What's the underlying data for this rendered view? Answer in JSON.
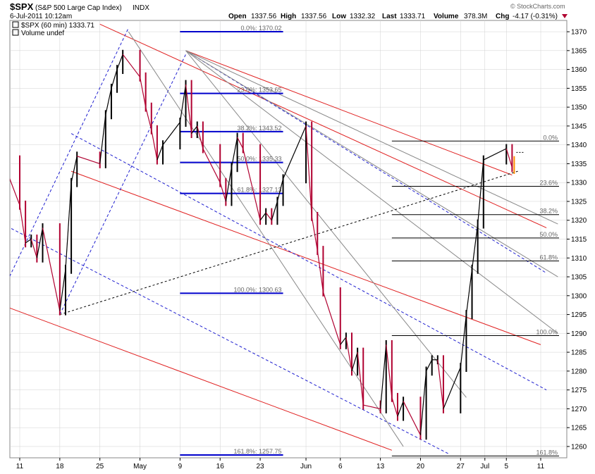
{
  "header": {
    "symbol": "$SPX",
    "name": "(S&P 500 Large Cap Index)",
    "exchange": "INDX",
    "date": "6-Jul-2011 10:12am",
    "open_label": "Open",
    "open": "1337.56",
    "high_label": "High",
    "high": "1337.56",
    "low_label": "Low",
    "low": "1332.32",
    "last_label": "Last",
    "last": "1333.71",
    "volume_label": "Volume",
    "volume": "378.3M",
    "chg_label": "Chg",
    "chg": "-4.17 (-0.31%)",
    "brand": "© StockCharts.com"
  },
  "legend": {
    "series": "$SPX (60 min) 1333.71",
    "volume": "Volume undef"
  },
  "colors": {
    "up": "#000000",
    "down": "#b00030",
    "last": "#ff8c00",
    "red_channel": "#e02020",
    "blue_channel": "#2020d0",
    "fan": "#888888",
    "fib_left": "#0000cc",
    "fib_right": "#000000",
    "grid": "#d0d0d0"
  },
  "chart_data": {
    "type": "line",
    "title": "$SPX (S&P 500 Large Cap Index) INDX",
    "xlabel": "",
    "ylabel": "",
    "ylim": [
      1257,
      1373
    ],
    "x_ticks": [
      "11",
      "18",
      "25",
      "May",
      "9",
      "16",
      "23",
      "Jun",
      "6",
      "13",
      "20",
      "27",
      "Jul",
      "5",
      "11"
    ],
    "y_ticks": [
      1260,
      1265,
      1270,
      1275,
      1280,
      1285,
      1290,
      1295,
      1300,
      1305,
      1310,
      1315,
      1320,
      1325,
      1330,
      1335,
      1340,
      1345,
      1350,
      1355,
      1360,
      1365,
      1370
    ],
    "grid": true,
    "series": [
      {
        "name": "$SPX (60 min)",
        "x": [
          "2011-04-08",
          "2011-04-11",
          "2011-04-12",
          "2011-04-13",
          "2011-04-14",
          "2011-04-15",
          "2011-04-18",
          "2011-04-19",
          "2011-04-20",
          "2011-04-21",
          "2011-04-25",
          "2011-04-26",
          "2011-04-27",
          "2011-04-28",
          "2011-04-29",
          "2011-05-02",
          "2011-05-03",
          "2011-05-04",
          "2011-05-05",
          "2011-05-06",
          "2011-05-09",
          "2011-05-10",
          "2011-05-11",
          "2011-05-12",
          "2011-05-13",
          "2011-05-16",
          "2011-05-17",
          "2011-05-18",
          "2011-05-19",
          "2011-05-20",
          "2011-05-23",
          "2011-05-24",
          "2011-05-25",
          "2011-05-26",
          "2011-05-27",
          "2011-05-31",
          "2011-06-01",
          "2011-06-02",
          "2011-06-03",
          "2011-06-06",
          "2011-06-07",
          "2011-06-08",
          "2011-06-09",
          "2011-06-10",
          "2011-06-13",
          "2011-06-14",
          "2011-06-15",
          "2011-06-16",
          "2011-06-17",
          "2011-06-20",
          "2011-06-21",
          "2011-06-22",
          "2011-06-23",
          "2011-06-24",
          "2011-06-27",
          "2011-06-28",
          "2011-06-29",
          "2011-06-30",
          "2011-07-01",
          "2011-07-05",
          "2011-07-06"
        ],
        "values": [
          1336,
          1324,
          1314,
          1315,
          1310,
          1318,
          1296,
          1307,
          1330,
          1337,
          1335,
          1348,
          1355,
          1360,
          1364,
          1358,
          1350,
          1344,
          1336,
          1340,
          1346,
          1356,
          1343,
          1345,
          1339,
          1330,
          1325,
          1334,
          1342,
          1339,
          1320,
          1322,
          1320,
          1325,
          1331,
          1345,
          1321,
          1312,
          1301,
          1287,
          1289,
          1280,
          1285,
          1271,
          1270,
          1287,
          1273,
          1268,
          1272,
          1263,
          1280,
          1283,
          1283,
          1270,
          1281,
          1295,
          1307,
          1319,
          1336,
          1339,
          1334
        ]
      }
    ],
    "fib_levels_left": [
      {
        "label": "0.0%",
        "value": 1370.02
      },
      {
        "label": "23.6%",
        "value": 1353.65
      },
      {
        "label": "38.2%",
        "value": 1343.52
      },
      {
        "label": "50.0%",
        "value": 1335.33
      },
      {
        "label": "61.8%",
        "value": 1327.13
      },
      {
        "label": "100.0%",
        "value": 1300.63
      },
      {
        "label": "161.8%",
        "value": 1257.75
      }
    ],
    "fib_levels_right": [
      {
        "label": "0.0%",
        "value": 1341.0
      },
      {
        "label": "23.6%",
        "value": 1329.0
      },
      {
        "label": "38.2%",
        "value": 1321.5
      },
      {
        "label": "50.0%",
        "value": 1315.3
      },
      {
        "label": "61.8%",
        "value": 1309.2
      },
      {
        "label": "100.0%",
        "value": 1289.4
      },
      {
        "label": "161.8%",
        "value": 1257.5
      }
    ],
    "trendlines": [
      {
        "style": "red",
        "from": [
          "2011-04-20",
          1333
        ],
        "to": [
          "2011-07-11",
          1287
        ]
      },
      {
        "style": "red",
        "from": [
          "2011-04-07",
          1298
        ],
        "to": [
          "2011-06-15",
          1259
        ]
      },
      {
        "style": "red",
        "from": [
          "2011-04-25",
          1372
        ],
        "to": [
          "2011-07-12",
          1318
        ]
      },
      {
        "style": "red",
        "from": [
          "2011-05-10",
          1365
        ],
        "to": [
          "2011-07-06",
          1332
        ]
      },
      {
        "style": "blue",
        "from": [
          "2011-04-20",
          1343
        ],
        "to": [
          "2011-07-12",
          1275
        ]
      },
      {
        "style": "blue",
        "from": [
          "2011-04-08",
          1319
        ],
        "to": [
          "2011-06-25",
          1258
        ]
      },
      {
        "style": "blue",
        "from": [
          "2011-05-10",
          1365
        ],
        "to": [
          "2011-07-12",
          1306
        ]
      },
      {
        "style": "blue",
        "from": [
          "2011-04-07",
          1298
        ],
        "to": [
          "2011-04-30",
          1371
        ]
      },
      {
        "style": "blue",
        "from": [
          "2011-04-18",
          1295
        ],
        "to": [
          "2011-05-10",
          1364
        ]
      },
      {
        "style": "gray",
        "from": [
          "2011-05-10",
          1365
        ],
        "to": [
          "2011-07-14",
          1319
        ]
      },
      {
        "style": "gray",
        "from": [
          "2011-05-10",
          1365
        ],
        "to": [
          "2011-07-14",
          1305
        ]
      },
      {
        "style": "gray",
        "from": [
          "2011-05-10",
          1365
        ],
        "to": [
          "2011-07-14",
          1290
        ]
      },
      {
        "style": "gray",
        "from": [
          "2011-05-10",
          1365
        ],
        "to": [
          "2011-06-28",
          1273
        ]
      },
      {
        "style": "gray",
        "from": [
          "2011-04-30",
          1370
        ],
        "to": [
          "2011-06-17",
          1260
        ]
      },
      {
        "style": "dashed-black",
        "from": [
          "2011-04-18",
          1295
        ],
        "to": [
          "2011-07-07",
          1333
        ]
      }
    ]
  }
}
